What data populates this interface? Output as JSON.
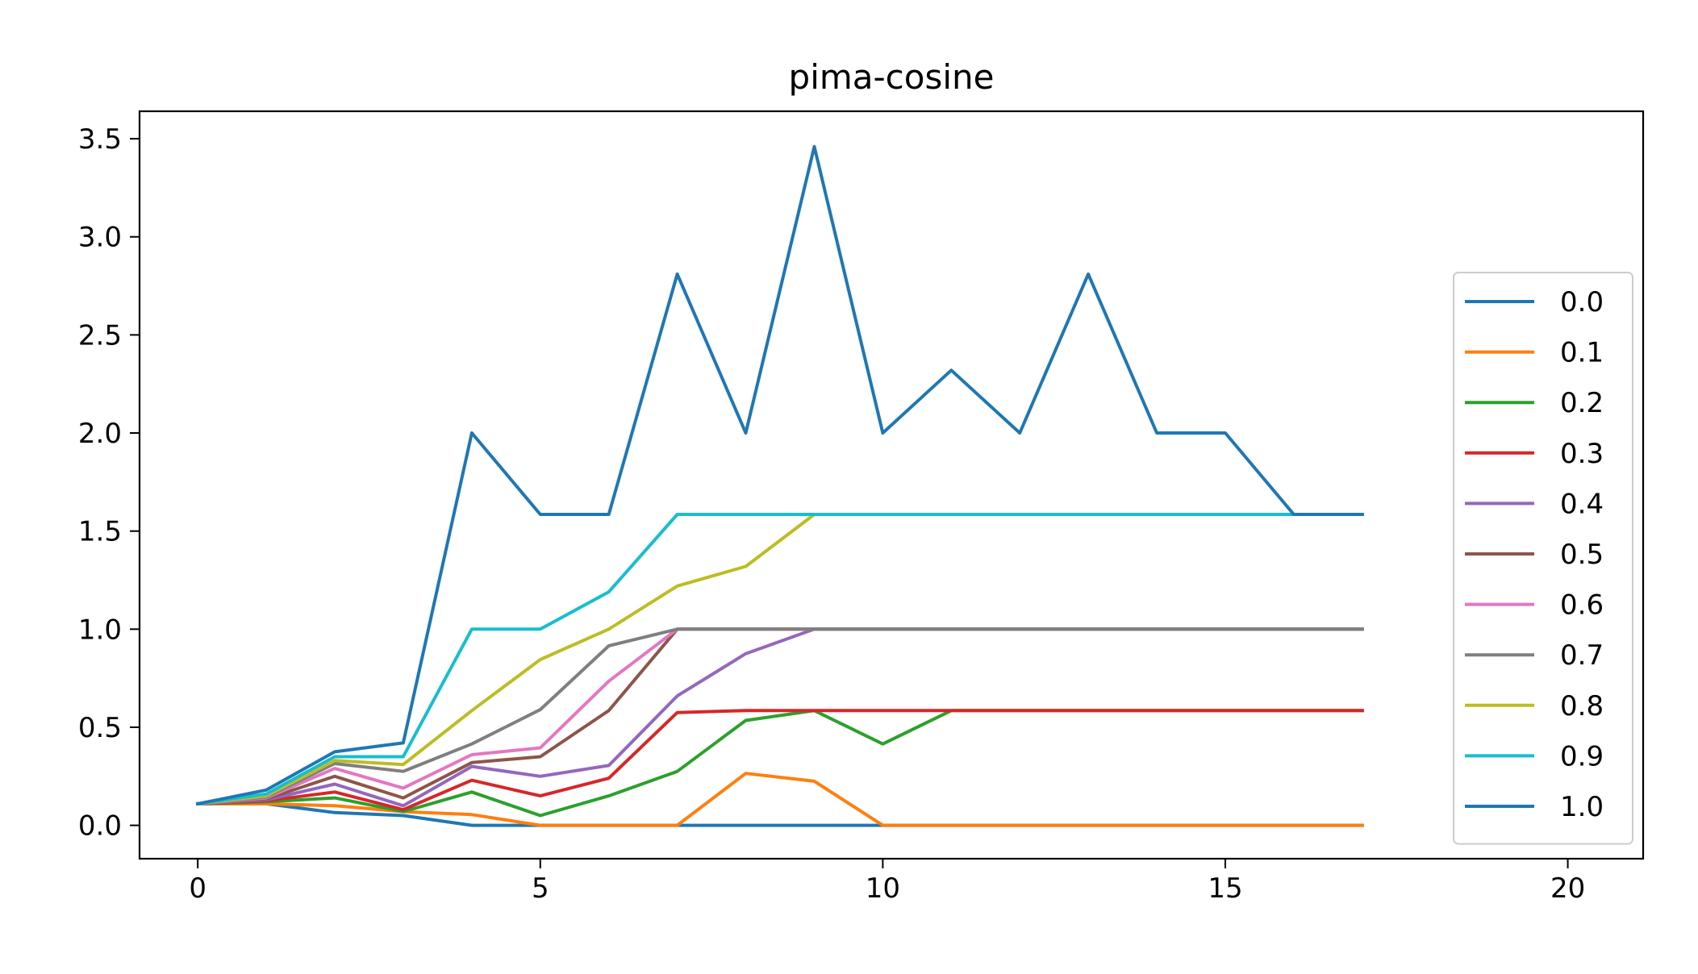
{
  "chart_data": {
    "type": "line",
    "title": "pima-cosine",
    "xlabel": "",
    "ylabel": "",
    "xlim": [
      -0.85,
      21.1
    ],
    "ylim": [
      -0.17,
      3.64
    ],
    "xticks": [
      0,
      5,
      10,
      15,
      20
    ],
    "yticks": [
      0.0,
      0.5,
      1.0,
      1.5,
      2.0,
      2.5,
      3.0,
      3.5
    ],
    "xtick_labels": [
      "0",
      "5",
      "10",
      "15",
      "20"
    ],
    "ytick_labels": [
      "0.0",
      "0.5",
      "1.0",
      "1.5",
      "2.0",
      "2.5",
      "3.0",
      "3.5"
    ],
    "grid": false,
    "legend_position": "lower right",
    "x": [
      0,
      1,
      2,
      3,
      4,
      5,
      6,
      7,
      8,
      9,
      10,
      11,
      12,
      13,
      14,
      15,
      16,
      17
    ],
    "series": [
      {
        "name": "0.0",
        "color": "#1f77b4",
        "values": [
          0.11,
          0.11,
          0.065,
          0.05,
          0.0,
          0.0,
          0.0,
          0.0,
          0.0,
          0.0,
          0.0,
          0.0,
          0.0,
          0.0,
          0.0,
          0.0,
          0.0,
          0.0
        ]
      },
      {
        "name": "0.1",
        "color": "#ff7f0e",
        "values": [
          0.11,
          0.11,
          0.1,
          0.07,
          0.055,
          0.0,
          0.0,
          0.0,
          0.265,
          0.225,
          0.0,
          0.0,
          0.0,
          0.0,
          0.0,
          0.0,
          0.0,
          0.0
        ]
      },
      {
        "name": "0.2",
        "color": "#2ca02c",
        "values": [
          0.11,
          0.12,
          0.14,
          0.07,
          0.17,
          0.05,
          0.15,
          0.275,
          0.535,
          0.585,
          0.415,
          0.585,
          0.585,
          0.585,
          0.585,
          0.585,
          0.585,
          0.585
        ]
      },
      {
        "name": "0.3",
        "color": "#d62728",
        "values": [
          0.11,
          0.125,
          0.17,
          0.08,
          0.23,
          0.15,
          0.24,
          0.575,
          0.585,
          0.585,
          0.585,
          0.585,
          0.585,
          0.585,
          0.585,
          0.585,
          0.585,
          0.585
        ]
      },
      {
        "name": "0.4",
        "color": "#9467bd",
        "values": [
          0.11,
          0.13,
          0.21,
          0.1,
          0.3,
          0.25,
          0.305,
          0.66,
          0.875,
          1.0,
          1.0,
          1.0,
          1.0,
          1.0,
          1.0,
          1.0,
          1.0,
          1.0
        ]
      },
      {
        "name": "0.5",
        "color": "#8c564b",
        "values": [
          0.11,
          0.135,
          0.25,
          0.14,
          0.32,
          0.35,
          0.585,
          1.0,
          1.0,
          1.0,
          1.0,
          1.0,
          1.0,
          1.0,
          1.0,
          1.0,
          1.0,
          1.0
        ]
      },
      {
        "name": "0.6",
        "color": "#e377c2",
        "values": [
          0.11,
          0.14,
          0.29,
          0.19,
          0.36,
          0.395,
          0.735,
          1.0,
          1.0,
          1.0,
          1.0,
          1.0,
          1.0,
          1.0,
          1.0,
          1.0,
          1.0,
          1.0
        ]
      },
      {
        "name": "0.7",
        "color": "#7f7f7f",
        "values": [
          0.11,
          0.145,
          0.315,
          0.275,
          0.415,
          0.59,
          0.915,
          1.0,
          1.0,
          1.0,
          1.0,
          1.0,
          1.0,
          1.0,
          1.0,
          1.0,
          1.0,
          1.0
        ]
      },
      {
        "name": "0.8",
        "color": "#bcbd22",
        "values": [
          0.11,
          0.15,
          0.33,
          0.31,
          0.585,
          0.845,
          1.0,
          1.22,
          1.32,
          1.585,
          1.585,
          1.585,
          1.585,
          1.585,
          1.585,
          1.585,
          1.585,
          1.585
        ]
      },
      {
        "name": "0.9",
        "color": "#17becf",
        "values": [
          0.11,
          0.16,
          0.35,
          0.35,
          1.0,
          1.0,
          1.19,
          1.585,
          1.585,
          1.585,
          1.585,
          1.585,
          1.585,
          1.585,
          1.585,
          1.585,
          1.585,
          1.585
        ]
      },
      {
        "name": "1.0",
        "color": "#1f77b4",
        "values": [
          0.11,
          0.18,
          0.375,
          0.42,
          2.0,
          1.585,
          1.585,
          2.81,
          2.0,
          3.46,
          2.0,
          2.32,
          2.0,
          2.81,
          2.0,
          2.0,
          1.585,
          1.585
        ]
      }
    ]
  }
}
